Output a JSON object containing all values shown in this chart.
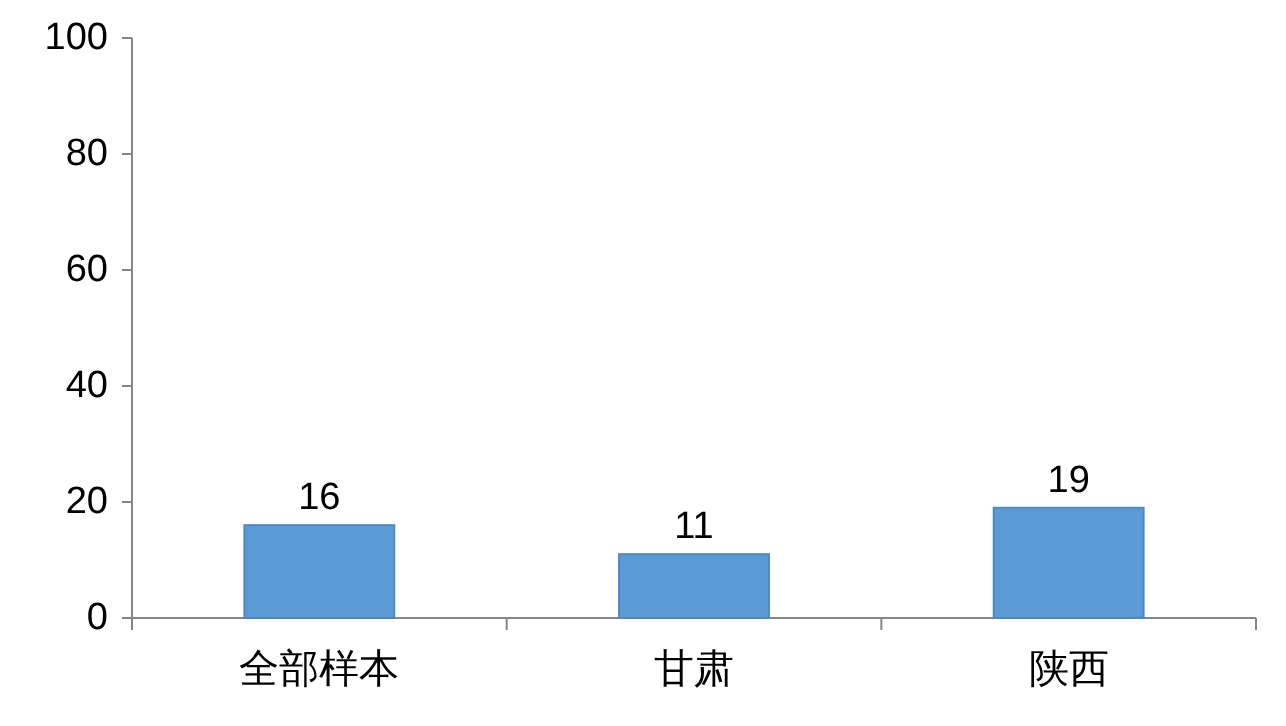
{
  "chart_data": {
    "type": "bar",
    "categories": [
      "全部样本",
      "甘肃",
      "陕西"
    ],
    "values": [
      16,
      11,
      19
    ],
    "color": "#5b9bd5",
    "ylim": [
      0,
      100
    ],
    "yticks": [
      0,
      20,
      40,
      60,
      80,
      100
    ],
    "data_labels": true
  }
}
